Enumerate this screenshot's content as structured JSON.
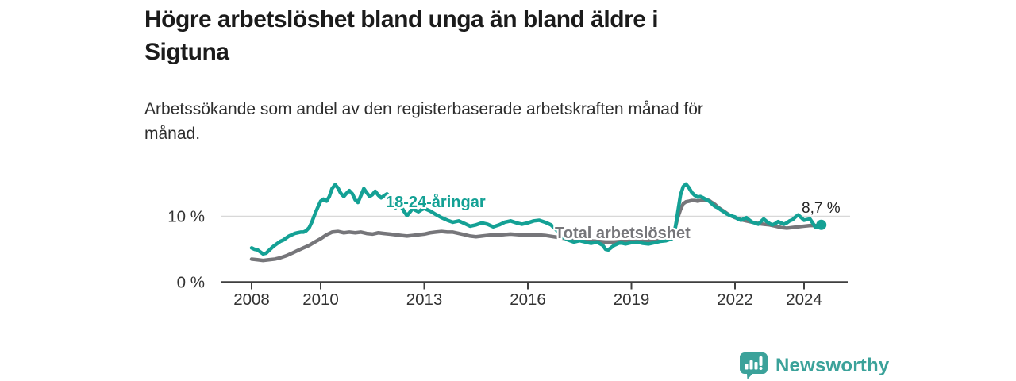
{
  "header": {
    "title_lines": [
      "Högre arbetslöshet bland unga än bland äldre i",
      "Sigtuna"
    ],
    "subtitle_lines": [
      "Arbetssökande som andel av den registerbaserade arbetskraften månad för",
      "månad."
    ]
  },
  "colors": {
    "young": "#14a195",
    "total": "#76767a",
    "grid": "#d8d8d8",
    "axis": "#3f3f3f",
    "tick_text": "#333333",
    "annotation": "#232323",
    "brand": "#3ba29a",
    "title": "#1b1b1b"
  },
  "chart_data": {
    "type": "line",
    "title": "Högre arbetslöshet bland unga än bland äldre i Sigtuna",
    "subtitle": "Arbetssökande som andel av den registerbaserade arbetskraften månad för månad.",
    "unit": "%",
    "ylim": [
      0,
      16.5
    ],
    "x_range": [
      2007.1,
      2025.3
    ],
    "grid": "horizontal-10-only",
    "legend_position": "inline-labels",
    "yticks": [
      {
        "value": 0,
        "label": "0 %"
      },
      {
        "value": 10,
        "label": "10 %"
      }
    ],
    "xticks": [
      {
        "value": 2008,
        "label": "2008"
      },
      {
        "value": 2010,
        "label": "2010"
      },
      {
        "value": 2013,
        "label": "2013"
      },
      {
        "value": 2016,
        "label": "2016"
      },
      {
        "value": 2019,
        "label": "2019"
      },
      {
        "value": 2022,
        "label": "2022"
      },
      {
        "value": 2024,
        "label": "2024"
      }
    ],
    "end_annotation": {
      "series": "18-24-åringar",
      "label": "8,7 %",
      "value": 8.7,
      "x": 2024.5
    },
    "series": [
      {
        "name": "18-24-åringar",
        "color": "#14a195",
        "points": [
          [
            2008.0,
            5.2
          ],
          [
            2008.08,
            5.0
          ],
          [
            2008.17,
            4.9
          ],
          [
            2008.25,
            4.6
          ],
          [
            2008.33,
            4.3
          ],
          [
            2008.42,
            4.4
          ],
          [
            2008.5,
            4.8
          ],
          [
            2008.58,
            5.2
          ],
          [
            2008.67,
            5.6
          ],
          [
            2008.75,
            5.9
          ],
          [
            2008.83,
            6.2
          ],
          [
            2008.92,
            6.4
          ],
          [
            2009.0,
            6.7
          ],
          [
            2009.08,
            7.0
          ],
          [
            2009.17,
            7.2
          ],
          [
            2009.25,
            7.4
          ],
          [
            2009.33,
            7.5
          ],
          [
            2009.42,
            7.6
          ],
          [
            2009.5,
            7.6
          ],
          [
            2009.58,
            7.8
          ],
          [
            2009.67,
            8.3
          ],
          [
            2009.75,
            9.2
          ],
          [
            2009.83,
            10.3
          ],
          [
            2009.92,
            11.4
          ],
          [
            2010.0,
            12.3
          ],
          [
            2010.08,
            12.6
          ],
          [
            2010.17,
            12.3
          ],
          [
            2010.25,
            13.0
          ],
          [
            2010.33,
            14.2
          ],
          [
            2010.42,
            14.8
          ],
          [
            2010.5,
            14.3
          ],
          [
            2010.58,
            13.5
          ],
          [
            2010.67,
            13.0
          ],
          [
            2010.75,
            13.5
          ],
          [
            2010.83,
            13.9
          ],
          [
            2010.92,
            13.4
          ],
          [
            2011.0,
            12.5
          ],
          [
            2011.08,
            12.1
          ],
          [
            2011.17,
            13.2
          ],
          [
            2011.25,
            14.2
          ],
          [
            2011.33,
            13.6
          ],
          [
            2011.42,
            13.0
          ],
          [
            2011.5,
            13.3
          ],
          [
            2011.58,
            13.8
          ],
          [
            2011.67,
            13.2
          ],
          [
            2011.75,
            12.8
          ],
          [
            2011.83,
            13.1
          ],
          [
            2011.92,
            13.4
          ],
          [
            2012.0,
            12.9
          ],
          [
            2012.08,
            11.9
          ],
          [
            2012.17,
            11.3
          ],
          [
            2012.25,
            11.9
          ],
          [
            2012.33,
            11.5
          ],
          [
            2012.42,
            10.7
          ],
          [
            2012.5,
            10.1
          ],
          [
            2012.58,
            10.6
          ],
          [
            2012.67,
            11.2
          ],
          [
            2012.75,
            10.9
          ],
          [
            2012.83,
            10.7
          ],
          [
            2012.92,
            11.0
          ],
          [
            2013.0,
            11.2
          ],
          [
            2013.17,
            10.8
          ],
          [
            2013.33,
            10.3
          ],
          [
            2013.5,
            9.8
          ],
          [
            2013.67,
            9.4
          ],
          [
            2013.83,
            9.1
          ],
          [
            2014.0,
            9.3
          ],
          [
            2014.17,
            8.9
          ],
          [
            2014.33,
            8.5
          ],
          [
            2014.5,
            8.7
          ],
          [
            2014.67,
            9.0
          ],
          [
            2014.83,
            8.8
          ],
          [
            2015.0,
            8.4
          ],
          [
            2015.17,
            8.7
          ],
          [
            2015.33,
            9.1
          ],
          [
            2015.5,
            9.3
          ],
          [
            2015.67,
            9.0
          ],
          [
            2015.83,
            8.8
          ],
          [
            2016.0,
            9.0
          ],
          [
            2016.17,
            9.3
          ],
          [
            2016.33,
            9.4
          ],
          [
            2016.5,
            9.1
          ],
          [
            2016.67,
            8.7
          ],
          [
            2016.83,
            7.9
          ],
          [
            2017.0,
            6.9
          ],
          [
            2017.17,
            6.4
          ],
          [
            2017.33,
            6.1
          ],
          [
            2017.5,
            6.3
          ],
          [
            2017.67,
            6.1
          ],
          [
            2017.83,
            5.9
          ],
          [
            2018.0,
            6.1
          ],
          [
            2018.17,
            5.6
          ],
          [
            2018.25,
            5.0
          ],
          [
            2018.33,
            4.9
          ],
          [
            2018.5,
            5.6
          ],
          [
            2018.67,
            6.0
          ],
          [
            2018.83,
            5.8
          ],
          [
            2019.0,
            6.0
          ],
          [
            2019.17,
            6.1
          ],
          [
            2019.33,
            5.9
          ],
          [
            2019.5,
            5.8
          ],
          [
            2019.67,
            6.0
          ],
          [
            2019.83,
            6.2
          ],
          [
            2020.0,
            6.3
          ],
          [
            2020.17,
            6.6
          ],
          [
            2020.25,
            7.6
          ],
          [
            2020.33,
            10.2
          ],
          [
            2020.42,
            13.2
          ],
          [
            2020.5,
            14.5
          ],
          [
            2020.58,
            14.9
          ],
          [
            2020.67,
            14.3
          ],
          [
            2020.75,
            13.6
          ],
          [
            2020.83,
            13.2
          ],
          [
            2020.92,
            12.9
          ],
          [
            2021.0,
            13.0
          ],
          [
            2021.08,
            12.8
          ],
          [
            2021.17,
            12.5
          ],
          [
            2021.25,
            12.3
          ],
          [
            2021.33,
            11.9
          ],
          [
            2021.42,
            11.5
          ],
          [
            2021.5,
            11.3
          ],
          [
            2021.58,
            11.0
          ],
          [
            2021.67,
            10.7
          ],
          [
            2021.75,
            10.4
          ],
          [
            2021.83,
            10.2
          ],
          [
            2021.92,
            10.0
          ],
          [
            2022.0,
            9.9
          ],
          [
            2022.08,
            9.6
          ],
          [
            2022.17,
            9.4
          ],
          [
            2022.25,
            9.6
          ],
          [
            2022.33,
            9.8
          ],
          [
            2022.42,
            9.4
          ],
          [
            2022.5,
            9.1
          ],
          [
            2022.58,
            9.0
          ],
          [
            2022.67,
            8.8
          ],
          [
            2022.75,
            9.2
          ],
          [
            2022.83,
            9.6
          ],
          [
            2022.92,
            9.2
          ],
          [
            2023.0,
            8.9
          ],
          [
            2023.08,
            8.7
          ],
          [
            2023.17,
            8.9
          ],
          [
            2023.25,
            9.2
          ],
          [
            2023.33,
            9.0
          ],
          [
            2023.42,
            8.8
          ],
          [
            2023.5,
            9.0
          ],
          [
            2023.58,
            9.3
          ],
          [
            2023.67,
            9.5
          ],
          [
            2023.75,
            9.9
          ],
          [
            2023.83,
            10.2
          ],
          [
            2023.92,
            9.8
          ],
          [
            2024.0,
            9.4
          ],
          [
            2024.08,
            9.5
          ],
          [
            2024.17,
            9.6
          ],
          [
            2024.25,
            9.0
          ],
          [
            2024.33,
            8.3
          ],
          [
            2024.42,
            8.4
          ],
          [
            2024.5,
            8.7
          ]
        ]
      },
      {
        "name": "Total arbetslöshet",
        "color": "#76767a",
        "points": [
          [
            2008.0,
            3.5
          ],
          [
            2008.17,
            3.4
          ],
          [
            2008.33,
            3.3
          ],
          [
            2008.5,
            3.4
          ],
          [
            2008.67,
            3.5
          ],
          [
            2008.83,
            3.7
          ],
          [
            2009.0,
            4.0
          ],
          [
            2009.17,
            4.4
          ],
          [
            2009.33,
            4.8
          ],
          [
            2009.5,
            5.2
          ],
          [
            2009.67,
            5.6
          ],
          [
            2009.83,
            6.1
          ],
          [
            2010.0,
            6.6
          ],
          [
            2010.17,
            7.2
          ],
          [
            2010.33,
            7.6
          ],
          [
            2010.5,
            7.7
          ],
          [
            2010.67,
            7.5
          ],
          [
            2010.83,
            7.6
          ],
          [
            2011.0,
            7.5
          ],
          [
            2011.17,
            7.6
          ],
          [
            2011.33,
            7.4
          ],
          [
            2011.5,
            7.3
          ],
          [
            2011.67,
            7.5
          ],
          [
            2011.83,
            7.4
          ],
          [
            2012.0,
            7.3
          ],
          [
            2012.17,
            7.2
          ],
          [
            2012.33,
            7.1
          ],
          [
            2012.5,
            7.0
          ],
          [
            2012.67,
            7.1
          ],
          [
            2012.83,
            7.2
          ],
          [
            2013.0,
            7.3
          ],
          [
            2013.17,
            7.5
          ],
          [
            2013.33,
            7.6
          ],
          [
            2013.5,
            7.7
          ],
          [
            2013.67,
            7.6
          ],
          [
            2013.83,
            7.6
          ],
          [
            2014.0,
            7.4
          ],
          [
            2014.17,
            7.2
          ],
          [
            2014.33,
            7.0
          ],
          [
            2014.5,
            6.9
          ],
          [
            2014.67,
            7.0
          ],
          [
            2014.83,
            7.1
          ],
          [
            2015.0,
            7.2
          ],
          [
            2015.25,
            7.2
          ],
          [
            2015.5,
            7.3
          ],
          [
            2015.75,
            7.2
          ],
          [
            2016.0,
            7.2
          ],
          [
            2016.25,
            7.2
          ],
          [
            2016.5,
            7.1
          ],
          [
            2016.75,
            6.9
          ],
          [
            2017.0,
            6.7
          ],
          [
            2017.25,
            6.5
          ],
          [
            2017.5,
            6.4
          ],
          [
            2017.75,
            6.3
          ],
          [
            2018.0,
            6.2
          ],
          [
            2018.25,
            6.1
          ],
          [
            2018.5,
            6.1
          ],
          [
            2018.75,
            6.2
          ],
          [
            2019.0,
            6.2
          ],
          [
            2019.25,
            6.3
          ],
          [
            2019.5,
            6.3
          ],
          [
            2019.75,
            6.4
          ],
          [
            2020.0,
            6.5
          ],
          [
            2020.17,
            6.9
          ],
          [
            2020.25,
            7.8
          ],
          [
            2020.33,
            9.6
          ],
          [
            2020.42,
            11.0
          ],
          [
            2020.5,
            11.9
          ],
          [
            2020.58,
            12.2
          ],
          [
            2020.67,
            12.3
          ],
          [
            2020.75,
            12.4
          ],
          [
            2020.83,
            12.4
          ],
          [
            2020.92,
            12.3
          ],
          [
            2021.0,
            12.4
          ],
          [
            2021.08,
            12.5
          ],
          [
            2021.17,
            12.5
          ],
          [
            2021.25,
            12.4
          ],
          [
            2021.33,
            12.1
          ],
          [
            2021.42,
            11.8
          ],
          [
            2021.5,
            11.4
          ],
          [
            2021.58,
            11.1
          ],
          [
            2021.67,
            10.8
          ],
          [
            2021.75,
            10.5
          ],
          [
            2021.83,
            10.2
          ],
          [
            2021.92,
            10.0
          ],
          [
            2022.0,
            9.8
          ],
          [
            2022.17,
            9.5
          ],
          [
            2022.33,
            9.3
          ],
          [
            2022.5,
            9.1
          ],
          [
            2022.67,
            8.9
          ],
          [
            2022.83,
            8.8
          ],
          [
            2023.0,
            8.7
          ],
          [
            2023.17,
            8.5
          ],
          [
            2023.33,
            8.3
          ],
          [
            2023.5,
            8.2
          ],
          [
            2023.67,
            8.3
          ],
          [
            2023.83,
            8.4
          ],
          [
            2024.0,
            8.5
          ],
          [
            2024.17,
            8.6
          ],
          [
            2024.33,
            8.6
          ],
          [
            2024.5,
            8.5
          ]
        ]
      }
    ]
  },
  "footer": {
    "brand": "Newsworthy",
    "logo_icon": "bar-chart-speech-bubble-icon"
  }
}
